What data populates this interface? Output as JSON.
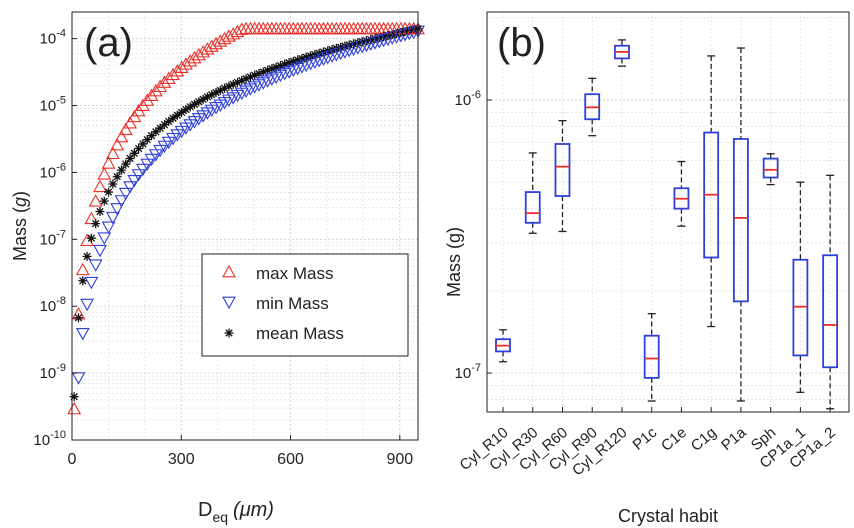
{
  "colors": {
    "max": "#e8302a",
    "min": "#2f3fd9",
    "mean": "#111111",
    "box": "#2f3fd9",
    "median": "#e8302a",
    "grid": "#cfcfcf"
  },
  "chart_data": [
    {
      "panel_label": "(a)",
      "type": "scatter",
      "xlabel_main": "D",
      "xlabel_sub": "eq",
      "xlabel_unit": "(μm)",
      "ylabel_main": "Mass (",
      "ylabel_unit": "g",
      "ylabel_close": ")",
      "xlim": [
        0,
        950
      ],
      "ylim": [
        1e-10,
        0.00025
      ],
      "yscale": "log",
      "grid": true,
      "xticks": [
        0,
        300,
        600,
        900
      ],
      "yticks": [
        -10,
        -9,
        -8,
        -7,
        -6,
        -5,
        -4
      ],
      "legend": {
        "placement": "center-right",
        "entries": [
          "max Mass",
          "min Mass",
          "mean Mass"
        ]
      },
      "series": [
        {
          "name": "max Mass",
          "marker": "triangle-up",
          "mass_at_d": "1.4e-4 * (D/470)^3 capped at 1.4e-4 (approx.)"
        },
        {
          "name": "min Mass",
          "marker": "triangle-down",
          "mass_at_d": "1.3e-4 * (D/950)^3 (approx.)"
        },
        {
          "name": "mean Mass",
          "marker": "asterisk",
          "mass_at_d": "1.4e-4 * (D/950)^2.5 (approx.)"
        }
      ],
      "max_plateau": 0.00014,
      "max_onset_d": 470,
      "min_end": 0.00013,
      "mean_end": 0.00014,
      "d_end": 950,
      "max_exp": 3.0,
      "min_exp": 3.0,
      "mean_exp": 2.5
    },
    {
      "panel_label": "(b)",
      "type": "box",
      "xlabel": "Crystal habit",
      "ylabel": "Mass (g)",
      "yscale": "log",
      "ylim": [
        7.2e-08,
        2.1e-06
      ],
      "yticks": [
        -7,
        -6
      ],
      "grid": true,
      "categories": [
        "Cyl_R10",
        "Cyl_R30",
        "Cyl_R60",
        "Cyl_R90",
        "Cyl_R120",
        "P1c",
        "C1e",
        "C1g",
        "P1a",
        "Sph",
        "CP1a_1",
        "CP1a_2"
      ],
      "boxes": [
        {
          "min": 1.1e-07,
          "q1": 1.2e-07,
          "median": 1.26e-07,
          "q3": 1.33e-07,
          "max": 1.44e-07
        },
        {
          "min": 3.25e-07,
          "q1": 3.55e-07,
          "median": 3.85e-07,
          "q3": 4.6e-07,
          "max": 6.4e-07
        },
        {
          "min": 3.3e-07,
          "q1": 4.45e-07,
          "median": 5.7e-07,
          "q3": 6.9e-07,
          "max": 8.4e-07
        },
        {
          "min": 7.4e-07,
          "q1": 8.5e-07,
          "median": 9.4e-07,
          "q3": 1.05e-06,
          "max": 1.2e-06
        },
        {
          "min": 1.33e-06,
          "q1": 1.42e-06,
          "median": 1.5e-06,
          "q3": 1.58e-06,
          "max": 1.66e-06
        },
        {
          "min": 7.9e-08,
          "q1": 9.6e-08,
          "median": 1.13e-07,
          "q3": 1.37e-07,
          "max": 1.65e-07
        },
        {
          "min": 3.45e-07,
          "q1": 4e-07,
          "median": 4.35e-07,
          "q3": 4.75e-07,
          "max": 5.95e-07
        },
        {
          "min": 1.48e-07,
          "q1": 2.65e-07,
          "median": 4.5e-07,
          "q3": 7.6e-07,
          "max": 1.45e-06
        },
        {
          "min": 7.9e-08,
          "q1": 1.83e-07,
          "median": 3.7e-07,
          "q3": 7.2e-07,
          "max": 1.55e-06
        },
        {
          "min": 4.9e-07,
          "q1": 5.2e-07,
          "median": 5.55e-07,
          "q3": 6.1e-07,
          "max": 6.35e-07
        },
        {
          "min": 8.5e-08,
          "q1": 1.16e-07,
          "median": 1.75e-07,
          "q3": 2.6e-07,
          "max": 5e-07
        },
        {
          "min": 7.4e-08,
          "q1": 1.05e-07,
          "median": 1.5e-07,
          "q3": 2.7e-07,
          "max": 5.3e-07
        }
      ]
    }
  ]
}
